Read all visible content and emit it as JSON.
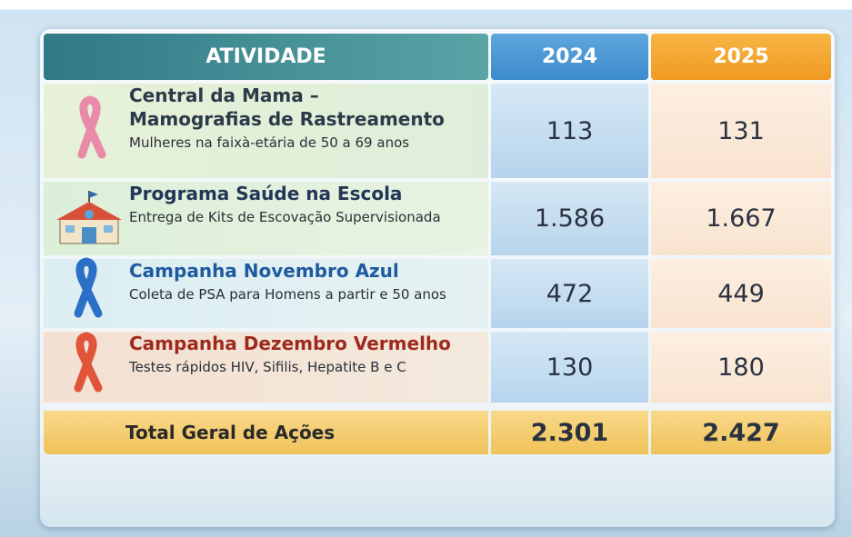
{
  "table": {
    "header": [
      "ATIVIDADE",
      "2024",
      "2025"
    ],
    "rows": [
      {
        "title": "Central da Mama –\nMamografias de Rastreamento",
        "subtitle": "Mulheres na faixà-etária de 50 a 69 anos",
        "values": [
          "113",
          "131"
        ]
      },
      {
        "title": "Programa Saúde na Escola",
        "subtitle": "Entrega de Kits de Escovação Supervisionada",
        "values": [
          "1.586",
          "1.667"
        ]
      },
      {
        "title": "Campanha Novembro Azul",
        "subtitle": "Coleta de PSA para Homens a partir e 50 anos",
        "values": [
          "472",
          "449"
        ]
      },
      {
        "title": "Campanha Dezembro Vermelho",
        "subtitle": "Testes rápidos HIV, Sifilis, Hepatite B e C",
        "values": [
          "130",
          "180"
        ]
      }
    ],
    "total": {
      "label": "Total Geral de Ações",
      "values": [
        "2.301",
        "2.427"
      ]
    }
  }
}
